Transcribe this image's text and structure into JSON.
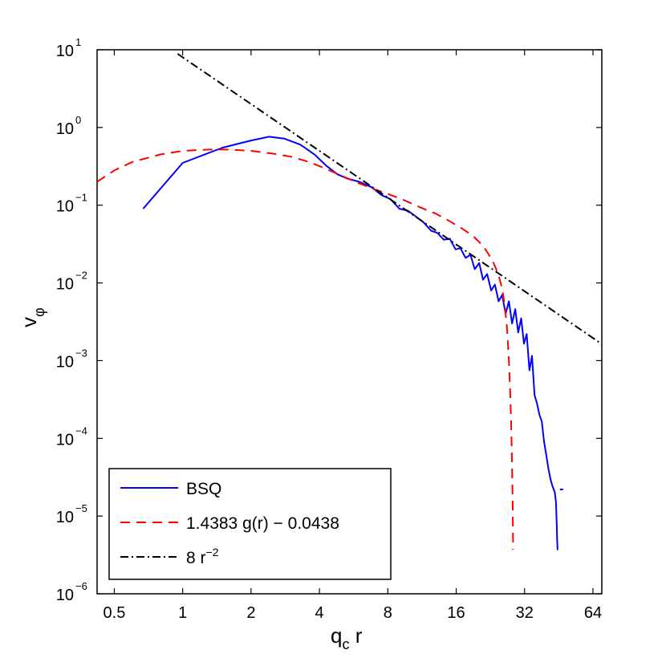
{
  "chart_data": {
    "type": "line",
    "title": "",
    "xlabel": "q",
    "xlabel_sub": "c",
    "xlabel_tail": " r",
    "ylabel": "v",
    "ylabel_sub": "φ",
    "x_scale": "log2",
    "y_scale": "log10",
    "xlim": [
      0.42,
      70
    ],
    "ylim": [
      1e-06,
      10
    ],
    "x_ticks": [
      {
        "value": 0.5,
        "label": "0.5"
      },
      {
        "value": 1,
        "label": "1"
      },
      {
        "value": 2,
        "label": "2"
      },
      {
        "value": 4,
        "label": "4"
      },
      {
        "value": 8,
        "label": "8"
      },
      {
        "value": 16,
        "label": "16"
      },
      {
        "value": 32,
        "label": "32"
      },
      {
        "value": 64,
        "label": "64"
      }
    ],
    "y_ticks": [
      {
        "value": 10,
        "base": "10",
        "exp": "1"
      },
      {
        "value": 1,
        "base": "10",
        "exp": "0"
      },
      {
        "value": 0.1,
        "base": "10",
        "exp": "−1"
      },
      {
        "value": 0.01,
        "base": "10",
        "exp": "−2"
      },
      {
        "value": 0.001,
        "base": "10",
        "exp": "−3"
      },
      {
        "value": 0.0001,
        "base": "10",
        "exp": "−4"
      },
      {
        "value": 1e-05,
        "base": "10",
        "exp": "−5"
      },
      {
        "value": 1e-06,
        "base": "10",
        "exp": "−6"
      }
    ],
    "grid": false,
    "legend_position": "bottom-left",
    "series": [
      {
        "name": "BSQ",
        "color": "#0000ff",
        "dash": "solid",
        "x": [
          0.67,
          1.0,
          1.5,
          2.0,
          2.4,
          2.8,
          3.3,
          3.8,
          4.3,
          4.8,
          5.3,
          6.0,
          6.8,
          7.5,
          8.2,
          9.0,
          9.8,
          10.6,
          11.5,
          12.4,
          13.2,
          14.1,
          15.0,
          15.9,
          16.7,
          17.6,
          18.5,
          19.3,
          20.2,
          21.0,
          21.9,
          22.8,
          23.7,
          24.6,
          25.5,
          26.4,
          27.3,
          28.2,
          29.1,
          30.0,
          30.9,
          31.8,
          32.7,
          33.6,
          34.5,
          35.4,
          36.3,
          37.2,
          38.1,
          39.0,
          39.9,
          40.8,
          41.6,
          42.3,
          43.0,
          43.5,
          44.0,
          44.3,
          44.5,
          44.7,
          44.8
        ],
        "y": [
          0.09,
          0.35,
          0.55,
          0.68,
          0.76,
          0.72,
          0.6,
          0.45,
          0.32,
          0.25,
          0.22,
          0.2,
          0.17,
          0.135,
          0.12,
          0.09,
          0.085,
          0.072,
          0.06,
          0.047,
          0.044,
          0.036,
          0.037,
          0.027,
          0.028,
          0.021,
          0.023,
          0.015,
          0.018,
          0.011,
          0.013,
          0.008,
          0.0095,
          0.0058,
          0.007,
          0.004,
          0.0058,
          0.003,
          0.0046,
          0.0023,
          0.0035,
          0.00165,
          0.0022,
          0.00075,
          0.00115,
          0.00036,
          0.00028,
          0.0002,
          0.000165,
          9e-05,
          6e-05,
          4e-05,
          3e-05,
          2.5e-05,
          2.2e-05,
          2e-05,
          1.5e-05,
          8e-06,
          5e-06,
          3.7e-06,
          3.7e-06
        ]
      },
      {
        "name": "1.4383 g(r) − 0.0438",
        "color": "#ff0000",
        "dash": "dashed",
        "x": [
          0.42,
          0.5,
          0.6,
          0.8,
          1.0,
          1.3,
          1.6,
          2.0,
          2.5,
          3.0,
          3.6,
          4.2,
          5.0,
          6.0,
          7.0,
          8.0,
          9.5,
          11,
          13,
          15,
          17,
          19,
          21,
          23,
          24.5,
          25.5,
          26.2,
          26.8,
          27.3,
          27.7,
          28.0,
          28.2,
          28.35,
          28.45,
          28.5
        ],
        "y": [
          0.2,
          0.28,
          0.36,
          0.45,
          0.5,
          0.52,
          0.52,
          0.5,
          0.46,
          0.42,
          0.36,
          0.3,
          0.24,
          0.19,
          0.16,
          0.14,
          0.115,
          0.095,
          0.078,
          0.062,
          0.05,
          0.04,
          0.03,
          0.02,
          0.013,
          0.0085,
          0.005,
          0.0025,
          0.001,
          0.00035,
          0.00012,
          4e-05,
          1.5e-05,
          6e-06,
          3.7e-06
        ]
      },
      {
        "name": "8 r",
        "name_sup": "−2",
        "color": "#000000",
        "dash": "dashdot",
        "x": [
          0.95,
          70
        ],
        "y": [
          8.86,
          0.001633
        ]
      }
    ],
    "stray_point": {
      "x": 46.5,
      "y": 2.2e-05
    }
  }
}
